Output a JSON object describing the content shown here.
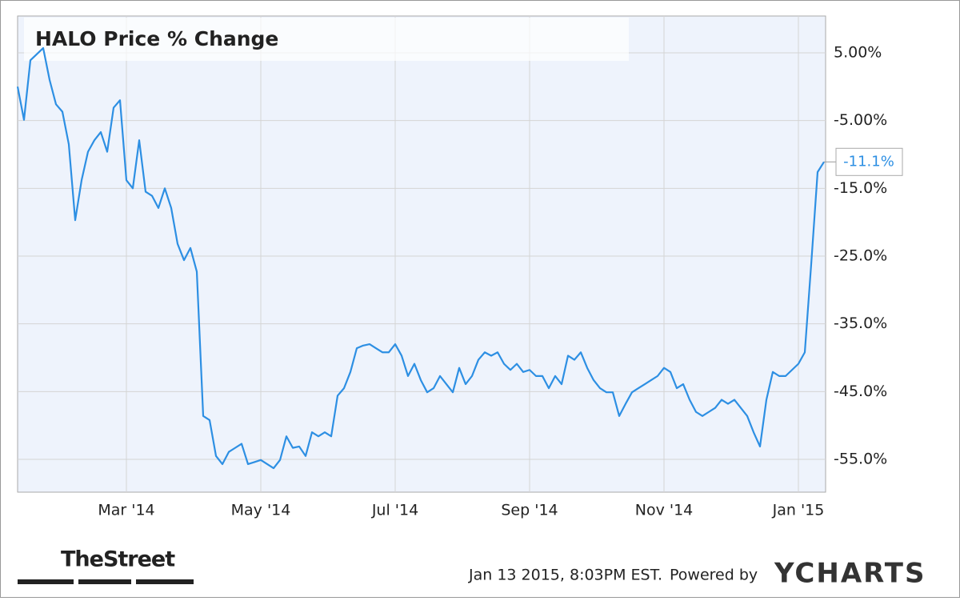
{
  "chart_data": {
    "type": "line",
    "title": "HALO Price  % Change",
    "categories": [
      null,
      null,
      null,
      null,
      null,
      null,
      null,
      null,
      null,
      null,
      null,
      null,
      null,
      null,
      null,
      null,
      null,
      "Mar '14",
      null,
      null,
      null,
      null,
      null,
      null,
      null,
      null,
      null,
      null,
      null,
      null,
      null,
      null,
      null,
      null,
      null,
      null,
      null,
      null,
      "May '14",
      null,
      null,
      null,
      null,
      null,
      null,
      null,
      null,
      null,
      null,
      null,
      null,
      null,
      null,
      null,
      null,
      null,
      null,
      null,
      null,
      "Jul '14",
      null,
      null,
      null,
      null,
      null,
      null,
      null,
      null,
      null,
      null,
      null,
      null,
      null,
      null,
      null,
      null,
      null,
      null,
      null,
      null,
      "Sep '14",
      null,
      null,
      null,
      null,
      null,
      null,
      null,
      null,
      null,
      null,
      null,
      null,
      null,
      null,
      null,
      null,
      null,
      null,
      null,
      null,
      "Nov '14",
      null,
      null,
      null,
      null,
      null,
      null,
      null,
      null,
      null,
      null,
      null,
      null,
      null,
      null,
      null,
      null,
      null,
      null,
      null,
      null,
      "Jan '15",
      null,
      null,
      null,
      null
    ],
    "series": [
      {
        "color": "#2d8fe3",
        "values": [
          0,
          -4.9,
          3.9,
          4.8,
          5.7,
          1,
          -2.6,
          -3.7,
          -8.5,
          -19.7,
          -13.8,
          -9.6,
          -7.9,
          -6.7,
          -9.6,
          -3.1,
          -2,
          -13.8,
          -15,
          -7.9,
          -15.5,
          -16.1,
          -17.9,
          -15,
          -17.9,
          -23.2,
          -25.6,
          -23.8,
          -27.3,
          -48.6,
          -49.2,
          -54.5,
          -55.7,
          -53.9,
          -53.3,
          -52.7,
          -55.7,
          -55.4,
          -55.1,
          -55.7,
          -56.3,
          -55.1,
          -51.6,
          -53.3,
          -53.1,
          -54.5,
          -51,
          -51.6,
          -51,
          -51.6,
          -45.6,
          -44.5,
          -42.1,
          -38.6,
          -38.2,
          -38,
          -38.6,
          -39.2,
          -39.2,
          -38,
          -39.7,
          -42.7,
          -40.9,
          -43.3,
          -45.1,
          -44.5,
          -42.7,
          -43.9,
          -45.1,
          -41.5,
          -43.9,
          -42.7,
          -40.3,
          -39.2,
          -39.7,
          -39.2,
          -40.9,
          -41.8,
          -40.9,
          -42.1,
          -41.8,
          -42.7,
          -42.7,
          -44.5,
          -42.7,
          -43.9,
          -39.7,
          -40.3,
          -39.2,
          -41.5,
          -43.3,
          -44.5,
          -45.1,
          -45.1,
          -48.6,
          -46.8,
          -45.1,
          -44.5,
          -43.9,
          -43.3,
          -42.7,
          -41.5,
          -42.1,
          -44.5,
          -43.9,
          -46.2,
          -48,
          -48.6,
          -48,
          -47.4,
          -46.2,
          -46.8,
          -46.2,
          -47.4,
          -48.6,
          -51,
          -53.1,
          -46.2,
          -42.1,
          -42.7,
          -42.7,
          -41.8,
          -40.9,
          -39.2,
          -26.2,
          -12.6,
          -11.1
        ]
      }
    ],
    "end_label": "-11.1%",
    "ylim": [
      -59.84,
      10.43
    ],
    "yticks": [
      {
        "value": 5,
        "label": "5.00%"
      },
      {
        "value": -5,
        "label": "-5.00%"
      },
      {
        "value": -15,
        "label": "-15.0%"
      },
      {
        "value": -25,
        "label": "-25.0%"
      },
      {
        "value": -35,
        "label": "-35.0%"
      },
      {
        "value": -45,
        "label": "-45.0%"
      },
      {
        "value": -55,
        "label": "-55.0%"
      }
    ],
    "grid": true,
    "source": "TheStreet",
    "timestamp": "Jan 13 2015, 8:03PM EST.",
    "powered_by": "Powered by",
    "brand": "YCHARTS"
  }
}
